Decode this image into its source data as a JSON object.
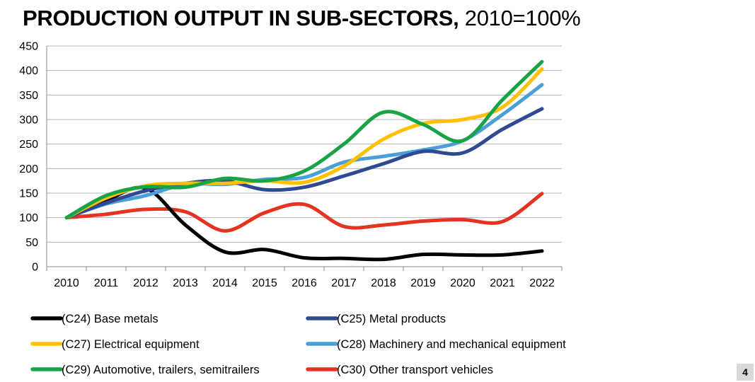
{
  "title": {
    "main": "PRODUCTION OUTPUT IN SUB-SECTORS,",
    "suffix": "2010=100%"
  },
  "page_number": "4",
  "colors": {
    "grid": "#b3b3b3",
    "axis": "#888888"
  },
  "chart_data": {
    "type": "line",
    "title": "PRODUCTION OUTPUT IN SUB-SECTORS, 2010=100%",
    "xlabel": "",
    "ylabel": "",
    "x": [
      "2010",
      "2011",
      "2012",
      "2013",
      "2014",
      "2015",
      "2016",
      "2017",
      "2018",
      "2019",
      "2020",
      "2021",
      "2022"
    ],
    "ylim": [
      0,
      450
    ],
    "yticks": [
      0,
      50,
      100,
      150,
      200,
      250,
      300,
      350,
      400,
      450
    ],
    "grid": true,
    "smooth": true,
    "legend_position": "bottom",
    "series": [
      {
        "name": "(C24) Base metals",
        "color": "#000000",
        "values": [
          100,
          135,
          160,
          85,
          30,
          35,
          18,
          17,
          15,
          25,
          24,
          24,
          32
        ]
      },
      {
        "name": "(C25) Metal products",
        "color": "#2f4a92",
        "values": [
          100,
          130,
          155,
          170,
          175,
          157,
          162,
          185,
          210,
          235,
          232,
          280,
          322
        ]
      },
      {
        "name": "(C27) Electrical equipment",
        "color": "#ffc000",
        "values": [
          100,
          140,
          165,
          170,
          170,
          175,
          172,
          205,
          260,
          292,
          300,
          325,
          403
        ]
      },
      {
        "name": "(C28) Machinery and mechanical equipment",
        "color": "#4a9fd8",
        "values": [
          100,
          128,
          145,
          168,
          168,
          178,
          182,
          213,
          225,
          238,
          257,
          310,
          371
        ]
      },
      {
        "name": "(C29) Automotive, trailers, semitrailers",
        "color": "#19a347",
        "values": [
          100,
          145,
          163,
          162,
          180,
          175,
          195,
          250,
          315,
          290,
          257,
          340,
          418
        ]
      },
      {
        "name": "(C30) Other transport vehicles",
        "color": "#e53322",
        "values": [
          100,
          107,
          117,
          112,
          73,
          110,
          127,
          82,
          85,
          93,
          96,
          92,
          149
        ]
      }
    ]
  }
}
